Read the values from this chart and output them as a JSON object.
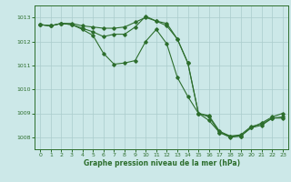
{
  "title": "Graphe pression niveau de la mer (hPa)",
  "bg_color": "#cce8e8",
  "grid_color": "#aacccc",
  "line_color": "#2d6e2d",
  "marker_color": "#2d6e2d",
  "xlim": [
    -0.5,
    23.5
  ],
  "ylim": [
    1007.5,
    1013.5
  ],
  "yticks": [
    1008,
    1009,
    1010,
    1011,
    1012,
    1013
  ],
  "xticks": [
    0,
    1,
    2,
    3,
    4,
    5,
    6,
    7,
    8,
    9,
    10,
    11,
    12,
    13,
    14,
    15,
    16,
    17,
    18,
    19,
    20,
    21,
    22,
    23
  ],
  "series1_x": [
    0,
    1,
    2,
    3,
    4,
    5,
    6,
    7,
    8,
    9,
    10,
    11,
    12,
    13,
    14,
    15,
    16,
    17,
    18,
    19,
    20,
    21,
    22,
    23
  ],
  "series1_y": [
    1012.7,
    1012.65,
    1012.75,
    1012.75,
    1012.65,
    1012.6,
    1012.55,
    1012.55,
    1012.6,
    1012.8,
    1013.0,
    1012.85,
    1012.75,
    1012.1,
    1011.1,
    1009.0,
    1008.85,
    1008.2,
    1008.0,
    1008.05,
    1008.4,
    1008.5,
    1008.8,
    1008.8
  ],
  "series2_x": [
    0,
    1,
    2,
    3,
    4,
    5,
    6,
    7,
    8,
    9,
    10,
    11,
    12,
    13,
    14,
    15,
    16,
    17,
    18,
    19,
    20,
    21,
    22,
    23
  ],
  "series2_y": [
    1012.7,
    1012.65,
    1012.75,
    1012.7,
    1012.55,
    1012.4,
    1012.2,
    1012.3,
    1012.3,
    1012.6,
    1013.05,
    1012.85,
    1012.65,
    1012.1,
    1011.1,
    1009.0,
    1008.9,
    1008.25,
    1008.05,
    1008.1,
    1008.45,
    1008.55,
    1008.8,
    1008.85
  ],
  "series3_x": [
    0,
    1,
    2,
    3,
    4,
    5,
    6,
    7,
    8,
    9,
    10,
    11,
    12,
    13,
    14,
    15,
    16,
    17,
    18,
    19,
    20,
    21,
    22,
    23
  ],
  "series3_y": [
    1012.7,
    1012.65,
    1012.75,
    1012.7,
    1012.5,
    1012.25,
    1011.5,
    1011.05,
    1011.1,
    1011.2,
    1012.0,
    1012.5,
    1011.9,
    1010.5,
    1009.7,
    1009.0,
    1008.7,
    1008.2,
    1008.05,
    1008.05,
    1008.4,
    1008.6,
    1008.85,
    1009.0
  ]
}
